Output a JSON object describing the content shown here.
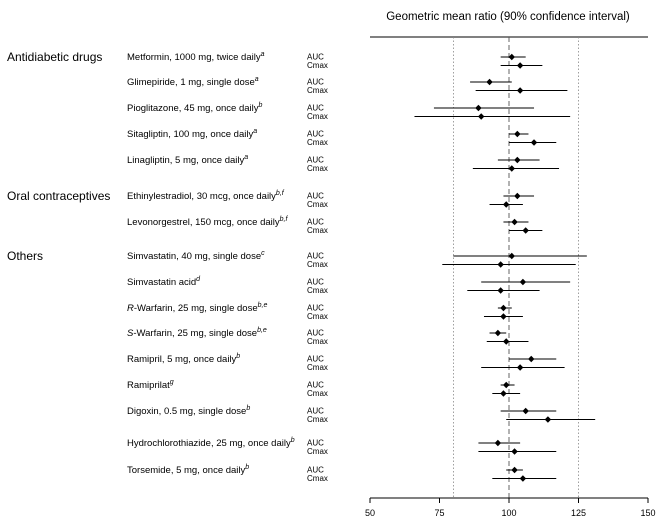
{
  "chart_data": {
    "type": "forest",
    "title": "Geometric mean ratio (90% confidence interval)",
    "xlim": [
      50,
      150
    ],
    "xticks": [
      50,
      75,
      100,
      125,
      150
    ],
    "reference_line": 100,
    "bound_lines": [
      80,
      125
    ],
    "groups": [
      {
        "name": "Antidiabetic drugs",
        "drugs": [
          {
            "name": "Metformin, 1000 mg, twice daily",
            "sup": "a",
            "rows": [
              {
                "metric": "AUC",
                "est": 101,
                "lo": 97,
                "hi": 106
              },
              {
                "metric": "Cmax",
                "est": 104,
                "lo": 97,
                "hi": 112
              }
            ]
          },
          {
            "name": "Glimepiride, 1 mg, single dose",
            "sup": "a",
            "rows": [
              {
                "metric": "AUC",
                "est": 93,
                "lo": 86,
                "hi": 101
              },
              {
                "metric": "Cmax",
                "est": 104,
                "lo": 88,
                "hi": 121
              }
            ]
          },
          {
            "name": "Pioglitazone, 45 mg, once daily",
            "sup": "b",
            "rows": [
              {
                "metric": "AUC",
                "est": 89,
                "lo": 73,
                "hi": 109
              },
              {
                "metric": "Cmax",
                "est": 90,
                "lo": 66,
                "hi": 122
              }
            ]
          },
          {
            "name": "Sitagliptin, 100 mg, once daily",
            "sup": "a",
            "rows": [
              {
                "metric": "AUC",
                "est": 103,
                "lo": 100,
                "hi": 107
              },
              {
                "metric": "Cmax",
                "est": 109,
                "lo": 100,
                "hi": 117
              }
            ]
          },
          {
            "name": "Linagliptin, 5 mg, once daily",
            "sup": "a",
            "rows": [
              {
                "metric": "AUC",
                "est": 103,
                "lo": 96,
                "hi": 111
              },
              {
                "metric": "Cmax",
                "est": 101,
                "lo": 87,
                "hi": 118
              }
            ]
          }
        ]
      },
      {
        "name": "Oral contraceptives",
        "drugs": [
          {
            "name": "Ethinylestradiol, 30 mcg, once daily",
            "sup": "b,f",
            "rows": [
              {
                "metric": "AUC",
                "est": 103,
                "lo": 98,
                "hi": 109
              },
              {
                "metric": "Cmax",
                "est": 99,
                "lo": 93,
                "hi": 105
              }
            ]
          },
          {
            "name": "Levonorgestrel, 150 mcg, once daily",
            "sup": "b,f",
            "rows": [
              {
                "metric": "AUC",
                "est": 102,
                "lo": 98,
                "hi": 107
              },
              {
                "metric": "Cmax",
                "est": 106,
                "lo": 100,
                "hi": 112
              }
            ]
          }
        ]
      },
      {
        "name": "Others",
        "drugs": [
          {
            "name": "Simvastatin, 40 mg, single dose",
            "sup": "c",
            "rows": [
              {
                "metric": "AUC",
                "est": 101,
                "lo": 80,
                "hi": 128
              },
              {
                "metric": "Cmax",
                "est": 97,
                "lo": 76,
                "hi": 124
              }
            ]
          },
          {
            "name": "Simvastatin acid",
            "sup": "d",
            "rows": [
              {
                "metric": "AUC",
                "est": 105,
                "lo": 90,
                "hi": 122
              },
              {
                "metric": "Cmax",
                "est": 97,
                "lo": 85,
                "hi": 111
              }
            ]
          },
          {
            "name": "R-Warfarin, 25 mg, single dose",
            "italic_prefix": "R",
            "sup": "b,e",
            "rows": [
              {
                "metric": "AUC",
                "est": 98,
                "lo": 96,
                "hi": 101
              },
              {
                "metric": "Cmax",
                "est": 98,
                "lo": 91,
                "hi": 105
              }
            ]
          },
          {
            "name": "S-Warfarin, 25 mg, single dose",
            "italic_prefix": "S",
            "sup": "b,e",
            "rows": [
              {
                "metric": "AUC",
                "est": 96,
                "lo": 93,
                "hi": 99
              },
              {
                "metric": "Cmax",
                "est": 99,
                "lo": 92,
                "hi": 107
              }
            ]
          },
          {
            "name": "Ramipril, 5 mg, once daily",
            "sup": "b",
            "rows": [
              {
                "metric": "AUC",
                "est": 108,
                "lo": 100,
                "hi": 117
              },
              {
                "metric": "Cmax",
                "est": 104,
                "lo": 90,
                "hi": 120
              }
            ]
          },
          {
            "name": "Ramiprilat",
            "sup": "g",
            "rows": [
              {
                "metric": "AUC",
                "est": 99,
                "lo": 97,
                "hi": 102
              },
              {
                "metric": "Cmax",
                "est": 98,
                "lo": 94,
                "hi": 104
              }
            ]
          },
          {
            "name": "Digoxin, 0.5 mg, single dose",
            "sup": "b",
            "rows": [
              {
                "metric": "AUC",
                "est": 106,
                "lo": 97,
                "hi": 117
              },
              {
                "metric": "Cmax",
                "est": 114,
                "lo": 99,
                "hi": 131
              }
            ]
          },
          {
            "name": "Hydrochlorothiazide, 25 mg, once daily",
            "sup": "b",
            "rows": [
              {
                "metric": "AUC",
                "est": 96,
                "lo": 89,
                "hi": 104
              },
              {
                "metric": "Cmax",
                "est": 102,
                "lo": 89,
                "hi": 117
              }
            ]
          },
          {
            "name": "Torsemide, 5 mg, once daily",
            "sup": "b",
            "rows": [
              {
                "metric": "AUC",
                "est": 102,
                "lo": 99,
                "hi": 105
              },
              {
                "metric": "Cmax",
                "est": 105,
                "lo": 94,
                "hi": 117
              }
            ]
          }
        ]
      }
    ]
  }
}
